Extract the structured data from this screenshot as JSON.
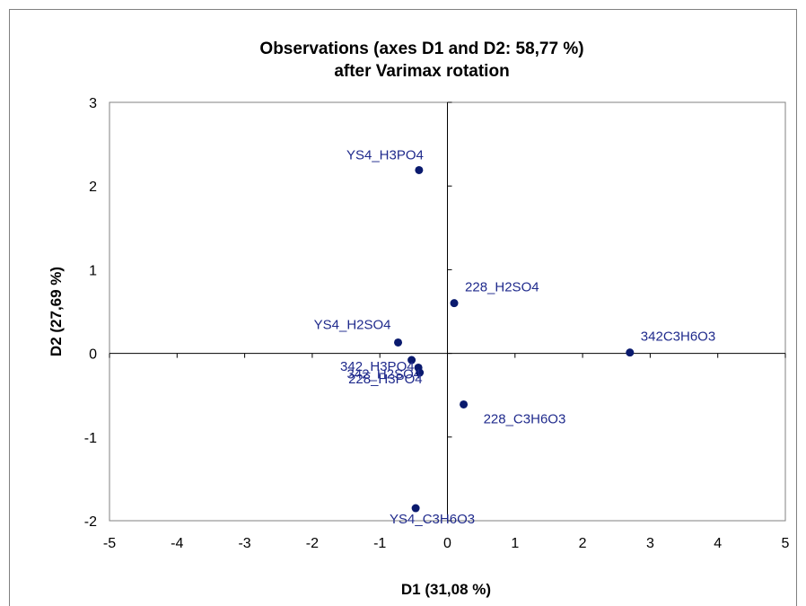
{
  "chart_data": {
    "type": "scatter",
    "title": "Observations (axes D1 and D2: 58,77 %)",
    "subtitle": "after Varimax rotation",
    "xlabel": "D1 (31,08 %)",
    "ylabel": "D2 (27,69 %)",
    "xlim": [
      -5,
      5
    ],
    "ylim": [
      -2,
      3
    ],
    "xticks": [
      "-5",
      "-4",
      "-3",
      "-2",
      "-1",
      "0",
      "1",
      "2",
      "3",
      "4",
      "5"
    ],
    "yticks": [
      "-2",
      "-1",
      "0",
      "1",
      "2",
      "3"
    ],
    "grid": false,
    "colors": {
      "point": "#0a1a6e",
      "label": "#1f2a8c",
      "axis": "#000000"
    },
    "points": [
      {
        "label": "YS4_H3PO4",
        "x": -0.42,
        "y": 2.19,
        "label_anchor": "above-left"
      },
      {
        "label": "228_H2SO4",
        "x": 0.1,
        "y": 0.6,
        "label_anchor": "upper-right"
      },
      {
        "label": "YS4_H2SO4",
        "x": -0.73,
        "y": 0.13,
        "label_anchor": "upper-left"
      },
      {
        "label": "342C3H6O3",
        "x": 2.7,
        "y": 0.01,
        "label_anchor": "upper-right"
      },
      {
        "label": "342_H3PO4",
        "x": -0.53,
        "y": -0.08,
        "label_anchor": "lower-left"
      },
      {
        "label": "342_H2SO4",
        "x": -0.43,
        "y": -0.17,
        "label_anchor": "lower-left"
      },
      {
        "label": "228_H3PO4",
        "x": -0.41,
        "y": -0.23,
        "label_anchor": "lower-left"
      },
      {
        "label": "228_C3H6O3",
        "x": 0.24,
        "y": -0.61,
        "label_anchor": "lower-right"
      },
      {
        "label": "YS4_C3H6O3",
        "x": -0.47,
        "y": -1.85,
        "label_anchor": "below-left"
      }
    ]
  }
}
